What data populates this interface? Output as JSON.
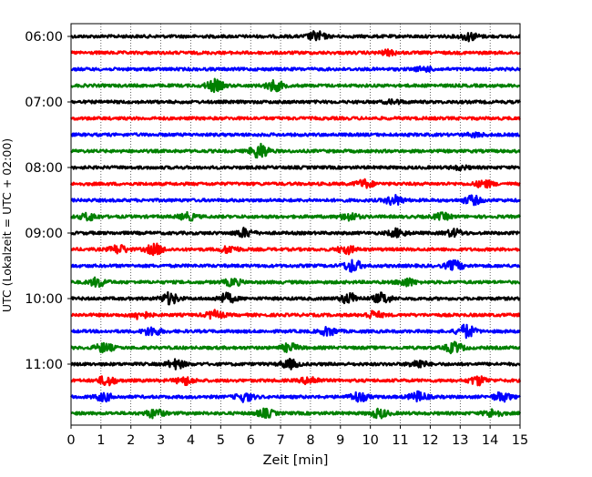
{
  "chart_data": {
    "type": "line",
    "title": "",
    "xlabel": "Zeit  [min]",
    "ylabel": "UTC (Lokalzeit = UTC + 02:00)",
    "xlim": [
      0,
      15
    ],
    "x_ticks": [
      0,
      1,
      2,
      3,
      4,
      5,
      6,
      7,
      8,
      9,
      10,
      11,
      12,
      13,
      14,
      15
    ],
    "y_tick_labels": [
      "06:00",
      "07:00",
      "08:00",
      "09:00",
      "10:00",
      "11:00"
    ],
    "trace_minutes": 15,
    "trace_colors": [
      "#000000",
      "#ff0000",
      "#0000ff",
      "#008000"
    ],
    "vertical_grid": true,
    "grid_style": "dotted",
    "legend": "none",
    "traces": [
      {
        "start": "06:00",
        "color": "#000000",
        "events": [
          [
            8.2,
            0.55
          ],
          [
            13.3,
            0.45
          ]
        ]
      },
      {
        "start": "06:15",
        "color": "#ff0000",
        "events": [
          [
            10.6,
            0.25
          ]
        ]
      },
      {
        "start": "06:30",
        "color": "#0000ff",
        "events": [
          [
            11.8,
            0.25
          ]
        ]
      },
      {
        "start": "06:45",
        "color": "#008000",
        "events": [
          [
            4.8,
            0.65
          ],
          [
            6.8,
            0.6
          ]
        ]
      },
      {
        "start": "07:00",
        "color": "#000000",
        "events": [
          [
            10.8,
            0.2
          ]
        ]
      },
      {
        "start": "07:15",
        "color": "#ff0000",
        "events": []
      },
      {
        "start": "07:30",
        "color": "#0000ff",
        "events": [
          [
            13.5,
            0.2
          ]
        ]
      },
      {
        "start": "07:45",
        "color": "#008000",
        "events": [
          [
            6.3,
            0.9
          ]
        ]
      },
      {
        "start": "08:00",
        "color": "#000000",
        "events": [
          [
            13.0,
            0.2
          ]
        ]
      },
      {
        "start": "08:15",
        "color": "#ff0000",
        "events": [
          [
            9.8,
            0.45
          ],
          [
            13.8,
            0.4
          ]
        ]
      },
      {
        "start": "08:30",
        "color": "#0000ff",
        "events": [
          [
            10.8,
            0.55
          ],
          [
            13.4,
            0.5
          ]
        ]
      },
      {
        "start": "08:45",
        "color": "#008000",
        "events": [
          [
            0.6,
            0.4
          ],
          [
            3.9,
            0.4
          ],
          [
            9.3,
            0.45
          ],
          [
            12.4,
            0.35
          ]
        ]
      },
      {
        "start": "09:00",
        "color": "#000000",
        "events": [
          [
            5.8,
            0.5
          ],
          [
            10.9,
            0.45
          ],
          [
            12.8,
            0.4
          ]
        ]
      },
      {
        "start": "09:15",
        "color": "#ff0000",
        "events": [
          [
            1.6,
            0.5
          ],
          [
            2.8,
            0.6
          ],
          [
            5.3,
            0.4
          ],
          [
            9.2,
            0.45
          ]
        ]
      },
      {
        "start": "09:30",
        "color": "#0000ff",
        "events": [
          [
            9.4,
            0.7
          ],
          [
            12.8,
            0.55
          ]
        ]
      },
      {
        "start": "09:45",
        "color": "#008000",
        "events": [
          [
            0.9,
            0.5
          ],
          [
            5.4,
            0.4
          ],
          [
            11.2,
            0.45
          ]
        ]
      },
      {
        "start": "10:00",
        "color": "#000000",
        "events": [
          [
            3.3,
            0.65
          ],
          [
            5.2,
            0.55
          ],
          [
            9.3,
            0.6
          ],
          [
            10.4,
            0.6
          ]
        ]
      },
      {
        "start": "10:15",
        "color": "#ff0000",
        "events": [
          [
            2.3,
            0.45
          ],
          [
            4.8,
            0.45
          ],
          [
            10.1,
            0.4
          ]
        ]
      },
      {
        "start": "10:30",
        "color": "#0000ff",
        "events": [
          [
            2.7,
            0.5
          ],
          [
            8.6,
            0.45
          ],
          [
            13.2,
            0.75
          ]
        ]
      },
      {
        "start": "10:45",
        "color": "#008000",
        "events": [
          [
            1.1,
            0.5
          ],
          [
            7.3,
            0.45
          ],
          [
            12.8,
            0.6
          ]
        ]
      },
      {
        "start": "11:00",
        "color": "#000000",
        "events": [
          [
            3.5,
            0.5
          ],
          [
            7.3,
            0.5
          ],
          [
            11.6,
            0.45
          ]
        ]
      },
      {
        "start": "11:15",
        "color": "#ff0000",
        "events": [
          [
            1.2,
            0.55
          ],
          [
            3.8,
            0.45
          ],
          [
            8.0,
            0.45
          ],
          [
            13.6,
            0.5
          ]
        ]
      },
      {
        "start": "11:30",
        "color": "#0000ff",
        "events": [
          [
            1.1,
            0.45
          ],
          [
            5.8,
            0.5
          ],
          [
            9.6,
            0.55
          ],
          [
            11.6,
            0.55
          ],
          [
            14.4,
            0.5
          ]
        ]
      },
      {
        "start": "11:45",
        "color": "#008000",
        "events": [
          [
            2.8,
            0.5
          ],
          [
            6.5,
            0.45
          ],
          [
            10.3,
            0.5
          ],
          [
            14.1,
            0.45
          ]
        ]
      }
    ]
  }
}
